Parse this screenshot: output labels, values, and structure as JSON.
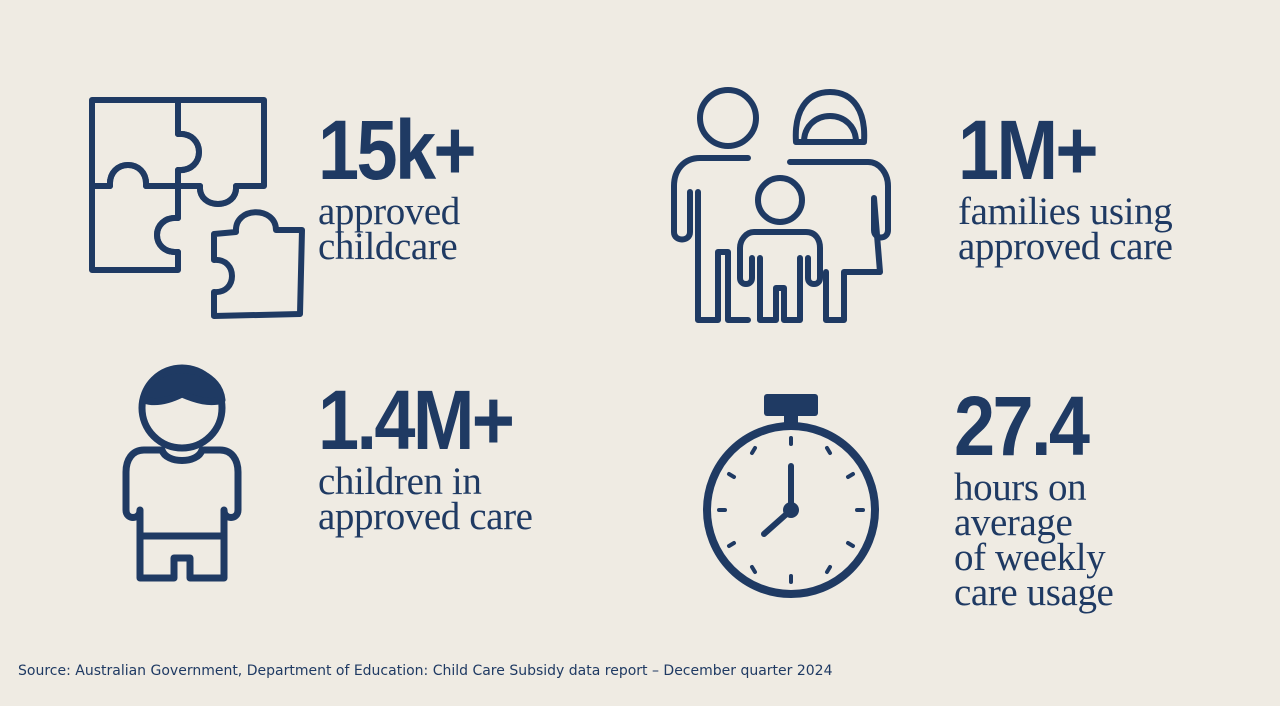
{
  "colors": {
    "background": "#efebe3",
    "accent": "#1f3a63"
  },
  "stats": [
    {
      "icon": "puzzle-icon",
      "value": "15k+",
      "description": "approved\nchildcare"
    },
    {
      "icon": "family-icon",
      "value": "1M+",
      "description": "families using\napproved care"
    },
    {
      "icon": "child-icon",
      "value": "1.4M+",
      "description": "children in\napproved care"
    },
    {
      "icon": "stopwatch-icon",
      "value": "27.4",
      "description": "hours on\naverage\nof weekly\ncare usage"
    }
  ],
  "footer": {
    "source": "Source: Australian Government, Department of Education: Child Care Subsidy data report – December quarter 2024"
  }
}
